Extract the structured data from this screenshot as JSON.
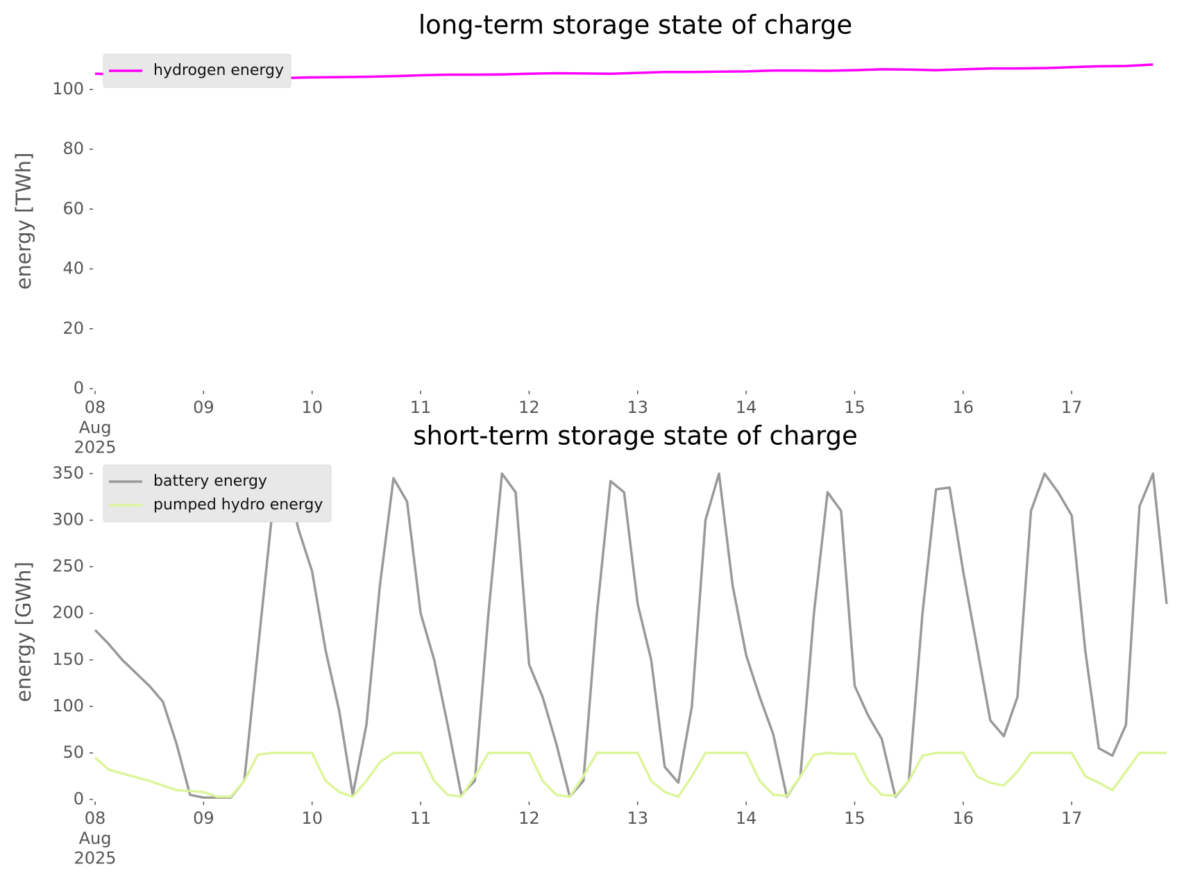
{
  "chart_data": [
    {
      "type": "line",
      "title": "long-term storage state of charge",
      "ylabel": "energy [TWh]",
      "xlim": [
        "2025-08-08 00:00",
        "2025-08-17 23:00"
      ],
      "ylim": [
        0,
        112
      ],
      "yticks": [
        0,
        20,
        40,
        60,
        80,
        100
      ],
      "xticks": [
        {
          "value": "2025-08-08 00:00",
          "label": "08\nAug\n2025"
        },
        {
          "value": "2025-08-09 00:00",
          "label": "09"
        },
        {
          "value": "2025-08-10 00:00",
          "label": "10"
        },
        {
          "value": "2025-08-11 00:00",
          "label": "11"
        },
        {
          "value": "2025-08-12 00:00",
          "label": "12"
        },
        {
          "value": "2025-08-13 00:00",
          "label": "13"
        },
        {
          "value": "2025-08-14 00:00",
          "label": "14"
        },
        {
          "value": "2025-08-15 00:00",
          "label": "15"
        },
        {
          "value": "2025-08-16 00:00",
          "label": "16"
        },
        {
          "value": "2025-08-17 00:00",
          "label": "17"
        }
      ],
      "legend": "upper left",
      "x": [
        "2025-08-08 00:00",
        "2025-08-08 06:00",
        "2025-08-08 12:00",
        "2025-08-08 18:00",
        "2025-08-09 00:00",
        "2025-08-09 06:00",
        "2025-08-09 12:00",
        "2025-08-09 18:00",
        "2025-08-10 00:00",
        "2025-08-10 06:00",
        "2025-08-10 12:00",
        "2025-08-10 18:00",
        "2025-08-11 00:00",
        "2025-08-11 06:00",
        "2025-08-11 12:00",
        "2025-08-11 18:00",
        "2025-08-12 00:00",
        "2025-08-12 06:00",
        "2025-08-12 12:00",
        "2025-08-12 18:00",
        "2025-08-13 00:00",
        "2025-08-13 06:00",
        "2025-08-13 12:00",
        "2025-08-13 18:00",
        "2025-08-14 00:00",
        "2025-08-14 06:00",
        "2025-08-14 12:00",
        "2025-08-14 18:00",
        "2025-08-15 00:00",
        "2025-08-15 06:00",
        "2025-08-15 12:00",
        "2025-08-15 18:00",
        "2025-08-16 00:00",
        "2025-08-16 06:00",
        "2025-08-16 12:00",
        "2025-08-16 18:00",
        "2025-08-17 00:00",
        "2025-08-17 06:00",
        "2025-08-17 12:00",
        "2025-08-17 18:00"
      ],
      "series": [
        {
          "name": "hydrogen energy",
          "color": "#ff00ff",
          "values": [
            105.2,
            105,
            104.8,
            104.5,
            104.2,
            103.9,
            103.7,
            103.8,
            104,
            104.1,
            104.2,
            104.4,
            104.7,
            104.9,
            104.9,
            105,
            105.2,
            105.4,
            105.3,
            105.2,
            105.5,
            105.8,
            105.8,
            105.9,
            106,
            106.3,
            106.3,
            106.2,
            106.4,
            106.7,
            106.6,
            106.4,
            106.7,
            107,
            107,
            107.1,
            107.4,
            107.7,
            107.8,
            108.3
          ]
        }
      ]
    },
    {
      "type": "line",
      "title": "short-term storage state of charge",
      "ylabel": "energy [GWh]",
      "xlim": [
        "2025-08-08 00:00",
        "2025-08-17 23:00"
      ],
      "ylim": [
        0,
        360
      ],
      "yticks": [
        0,
        50,
        100,
        150,
        200,
        250,
        300,
        350
      ],
      "xticks": [
        {
          "value": "2025-08-08 00:00",
          "label": "08\nAug\n2025"
        },
        {
          "value": "2025-08-09 00:00",
          "label": "09"
        },
        {
          "value": "2025-08-10 00:00",
          "label": "10"
        },
        {
          "value": "2025-08-11 00:00",
          "label": "11"
        },
        {
          "value": "2025-08-12 00:00",
          "label": "12"
        },
        {
          "value": "2025-08-13 00:00",
          "label": "13"
        },
        {
          "value": "2025-08-14 00:00",
          "label": "14"
        },
        {
          "value": "2025-08-15 00:00",
          "label": "15"
        },
        {
          "value": "2025-08-16 00:00",
          "label": "16"
        },
        {
          "value": "2025-08-17 00:00",
          "label": "17"
        }
      ],
      "legend": "upper left",
      "x": [
        "2025-08-08 00:00",
        "2025-08-08 03:00",
        "2025-08-08 06:00",
        "2025-08-08 09:00",
        "2025-08-08 12:00",
        "2025-08-08 15:00",
        "2025-08-08 18:00",
        "2025-08-08 21:00",
        "2025-08-09 00:00",
        "2025-08-09 03:00",
        "2025-08-09 06:00",
        "2025-08-09 09:00",
        "2025-08-09 12:00",
        "2025-08-09 15:00",
        "2025-08-09 18:00",
        "2025-08-09 21:00",
        "2025-08-10 00:00",
        "2025-08-10 03:00",
        "2025-08-10 06:00",
        "2025-08-10 09:00",
        "2025-08-10 12:00",
        "2025-08-10 15:00",
        "2025-08-10 18:00",
        "2025-08-10 21:00",
        "2025-08-11 00:00",
        "2025-08-11 03:00",
        "2025-08-11 06:00",
        "2025-08-11 09:00",
        "2025-08-11 12:00",
        "2025-08-11 15:00",
        "2025-08-11 18:00",
        "2025-08-11 21:00",
        "2025-08-12 00:00",
        "2025-08-12 03:00",
        "2025-08-12 06:00",
        "2025-08-12 09:00",
        "2025-08-12 12:00",
        "2025-08-12 15:00",
        "2025-08-12 18:00",
        "2025-08-12 21:00",
        "2025-08-13 00:00",
        "2025-08-13 03:00",
        "2025-08-13 06:00",
        "2025-08-13 09:00",
        "2025-08-13 12:00",
        "2025-08-13 15:00",
        "2025-08-13 18:00",
        "2025-08-13 21:00",
        "2025-08-14 00:00",
        "2025-08-14 03:00",
        "2025-08-14 06:00",
        "2025-08-14 09:00",
        "2025-08-14 12:00",
        "2025-08-14 15:00",
        "2025-08-14 18:00",
        "2025-08-14 21:00",
        "2025-08-15 00:00",
        "2025-08-15 03:00",
        "2025-08-15 06:00",
        "2025-08-15 09:00",
        "2025-08-15 12:00",
        "2025-08-15 15:00",
        "2025-08-15 18:00",
        "2025-08-15 21:00",
        "2025-08-16 00:00",
        "2025-08-16 03:00",
        "2025-08-16 06:00",
        "2025-08-16 09:00",
        "2025-08-16 12:00",
        "2025-08-16 15:00",
        "2025-08-16 18:00",
        "2025-08-16 21:00",
        "2025-08-17 00:00",
        "2025-08-17 03:00",
        "2025-08-17 06:00",
        "2025-08-17 09:00",
        "2025-08-17 12:00",
        "2025-08-17 15:00",
        "2025-08-17 18:00",
        "2025-08-17 21:00"
      ],
      "series": [
        {
          "name": "battery energy",
          "color": "#999999",
          "values": [
            182,
            167,
            150,
            136,
            122,
            105,
            60,
            5,
            2,
            2,
            2,
            20,
            160,
            300,
            350,
            290,
            245,
            160,
            95,
            5,
            80,
            230,
            345,
            320,
            200,
            150,
            80,
            5,
            20,
            200,
            350,
            330,
            145,
            110,
            60,
            3,
            20,
            200,
            342,
            330,
            210,
            150,
            35,
            18,
            100,
            300,
            350,
            230,
            155,
            110,
            70,
            3,
            25,
            200,
            330,
            310,
            122,
            90,
            65,
            3,
            20,
            200,
            333,
            335,
            245,
            165,
            85,
            68,
            110,
            310,
            350,
            330,
            305,
            160,
            55,
            47,
            80,
            315,
            350,
            210
          ]
        },
        {
          "name": "pumped hydro energy",
          "color": "#dcf59b",
          "values": [
            45,
            32,
            28,
            24,
            20,
            15,
            10,
            9,
            8,
            3,
            3,
            20,
            48,
            50,
            50,
            50,
            50,
            20,
            8,
            3,
            20,
            40,
            50,
            50,
            50,
            20,
            5,
            3,
            25,
            50,
            50,
            50,
            50,
            20,
            5,
            3,
            25,
            50,
            50,
            50,
            50,
            20,
            8,
            3,
            25,
            50,
            50,
            50,
            50,
            20,
            5,
            4,
            25,
            48,
            50,
            49,
            49,
            20,
            5,
            4,
            20,
            47,
            50,
            50,
            50,
            25,
            18,
            15,
            30,
            50,
            50,
            50,
            50,
            25,
            18,
            10,
            30,
            50,
            50,
            50
          ]
        }
      ]
    }
  ]
}
